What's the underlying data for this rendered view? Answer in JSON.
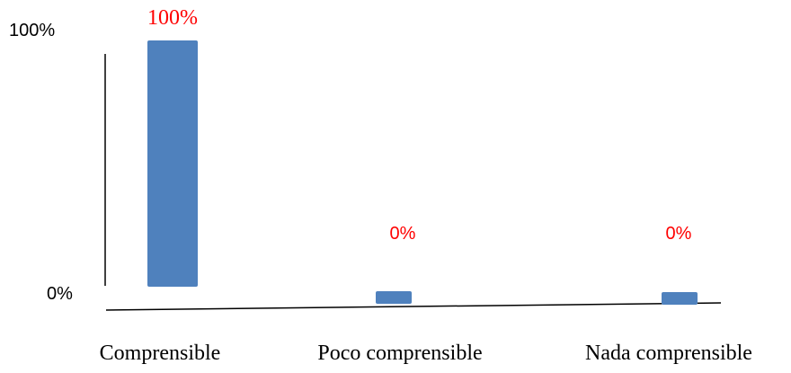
{
  "chart_data": {
    "type": "bar",
    "categories": [
      "Comprensible",
      "Poco comprensible",
      "Nada comprensible"
    ],
    "values": [
      100,
      0,
      0
    ],
    "data_labels": [
      "100%",
      "0%",
      "0%"
    ],
    "y_ticks": [
      "0%",
      "100%"
    ],
    "ylim": [
      0,
      100
    ],
    "grid": false,
    "legend": "none",
    "title": "",
    "xlabel": "",
    "ylabel": ""
  },
  "colors": {
    "bar": "#4f81bd",
    "data_label": "#ff0000",
    "axis": "#000000"
  }
}
